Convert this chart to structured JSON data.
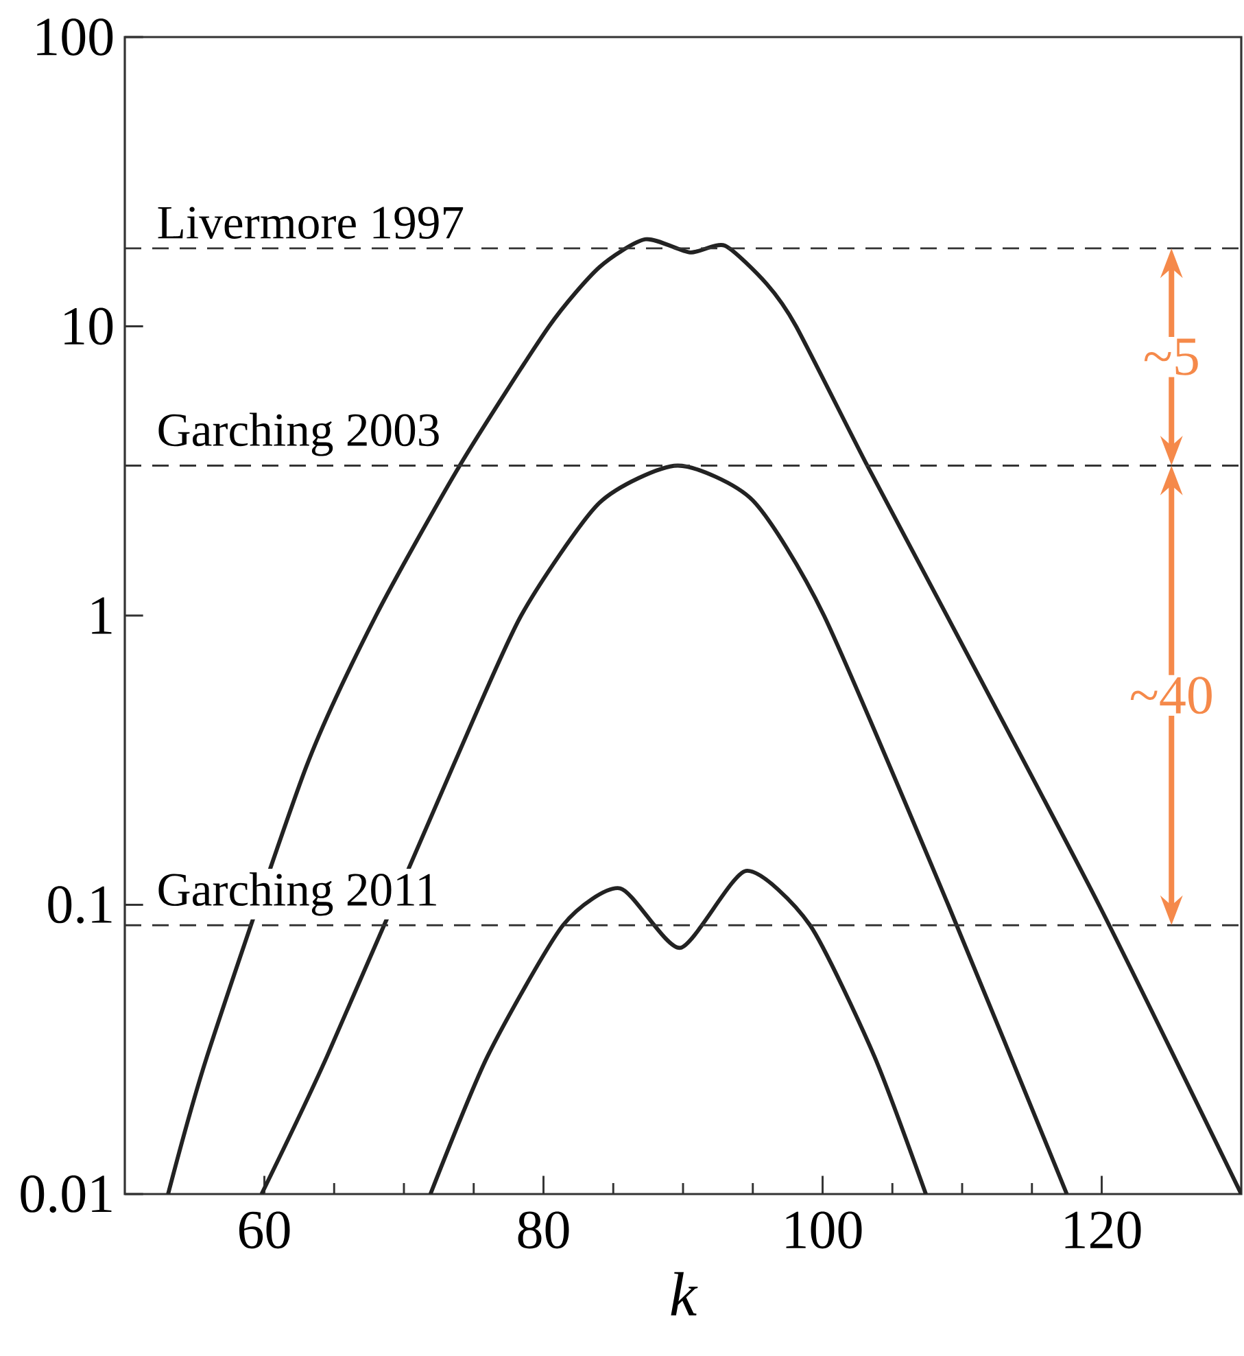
{
  "chart_data": {
    "type": "line",
    "xlabel": "k",
    "xlim": [
      50,
      130
    ],
    "xticks": [
      60,
      80,
      100,
      120
    ],
    "ylim": [
      0.01,
      100
    ],
    "yticks": [
      100,
      10,
      1,
      0.1,
      0.01
    ],
    "log": "y",
    "series": [
      {
        "color": "#222222",
        "x": [
          53.1,
          55.9,
          63.0,
          68.0,
          74.0,
          80.4,
          84.0,
          87.3,
          90.5,
          93.0,
          96.0,
          98.1,
          103.2,
          108.9,
          119.8,
          130.0
        ],
        "values": [
          0.01,
          0.03,
          0.3,
          1,
          3.3,
          10,
          16,
          20.0,
          18.0,
          19.0,
          14,
          10,
          3.3,
          1,
          0.1,
          0.01
        ]
      },
      {
        "color": "#222222",
        "x": [
          59.8,
          64.5,
          73.5,
          78.4,
          84.0,
          89.6,
          95.0,
          100.1,
          109.0,
          117.5
        ],
        "values": [
          0.01,
          0.03,
          0.3,
          1,
          2.45,
          3.3,
          2.5,
          1,
          0.1,
          0.01
        ]
      },
      {
        "color": "#222222",
        "x": [
          71.9,
          76.0,
          81.4,
          85.5,
          89.8,
          94.5,
          99.1,
          103.7,
          107.4
        ],
        "values": [
          0.01,
          0.03,
          0.085,
          0.114,
          0.071,
          0.131,
          0.085,
          0.03,
          0.01
        ]
      }
    ],
    "ref_lines": [
      {
        "axis": "y",
        "value": 18.6,
        "label": "Livermore 1997",
        "color": "#333333",
        "line_style": "dashed"
      },
      {
        "axis": "y",
        "value": 3.3,
        "label": "Garching 2003",
        "color": "#333333",
        "line_style": "dashed"
      },
      {
        "axis": "y",
        "value": 0.085,
        "label": "Garching 2011",
        "color": "#333333",
        "line_style": "dashed"
      }
    ],
    "annotations": [
      "~5",
      "~40"
    ],
    "grid": false
  }
}
